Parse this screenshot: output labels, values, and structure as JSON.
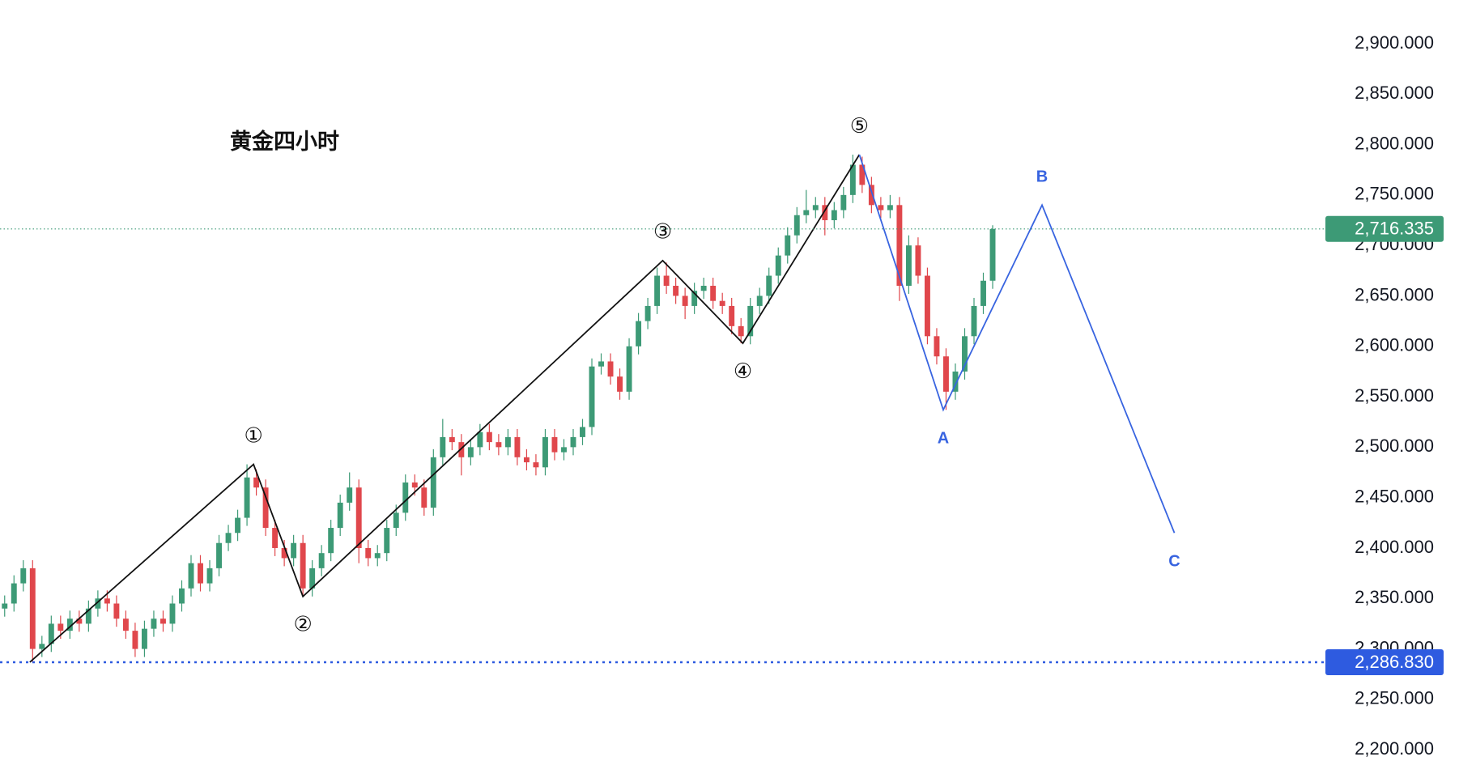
{
  "chart_data": {
    "type": "candlestick",
    "title": "黄金四小时",
    "up_color": "#3d9a76",
    "down_color": "#e0474c",
    "xlim": [
      0,
      142.2
    ],
    "ylim": [
      2188.9,
      2943.3
    ],
    "yticks": [
      {
        "value": 2200,
        "label": "2,200.000"
      },
      {
        "value": 2250,
        "label": "2,250.000"
      },
      {
        "value": 2300,
        "label": "2,300.000"
      },
      {
        "value": 2350,
        "label": "2,350.000"
      },
      {
        "value": 2400,
        "label": "2,400.000"
      },
      {
        "value": 2450,
        "label": "2,450.000"
      },
      {
        "value": 2500,
        "label": "2,500.000"
      },
      {
        "value": 2550,
        "label": "2,550.000"
      },
      {
        "value": 2600,
        "label": "2,600.000"
      },
      {
        "value": 2650,
        "label": "2,650.000"
      },
      {
        "value": 2700,
        "label": "2,700.000"
      },
      {
        "value": 2750,
        "label": "2,750.000"
      },
      {
        "value": 2800,
        "label": "2,800.000"
      },
      {
        "value": 2850,
        "label": "2,850.000"
      },
      {
        "value": 2900,
        "label": "2,900.000"
      }
    ],
    "open": [
      2340,
      2345,
      2365,
      2380,
      2300,
      2305,
      2325,
      2318,
      2330,
      2325,
      2340,
      2350,
      2345,
      2330,
      2318,
      2300,
      2320,
      2330,
      2325,
      2345,
      2360,
      2385,
      2365,
      2380,
      2405,
      2415,
      2430,
      2470,
      2460,
      2420,
      2400,
      2390,
      2405,
      2360,
      2380,
      2395,
      2420,
      2445,
      2460,
      2400,
      2390,
      2395,
      2420,
      2435,
      2465,
      2460,
      2440,
      2490,
      2510,
      2505,
      2490,
      2500,
      2515,
      2505,
      2500,
      2510,
      2490,
      2485,
      2480,
      2510,
      2495,
      2500,
      2510,
      2520,
      2580,
      2585,
      2570,
      2555,
      2600,
      2625,
      2640,
      2670,
      2660,
      2650,
      2640,
      2655,
      2660,
      2645,
      2640,
      2620,
      2610,
      2640,
      2650,
      2670,
      2690,
      2710,
      2730,
      2735,
      2740,
      2725,
      2735,
      2750,
      2780,
      2760,
      2740,
      2735,
      2740,
      2660,
      2700,
      2670,
      2610,
      2590,
      2555,
      2575,
      2610,
      2640,
      2665
    ],
    "high": [
      2353,
      2373,
      2388,
      2388,
      2313,
      2333,
      2333,
      2338,
      2338,
      2348,
      2358,
      2358,
      2353,
      2338,
      2326,
      2328,
      2338,
      2338,
      2353,
      2368,
      2393,
      2393,
      2388,
      2413,
      2423,
      2438,
      2483,
      2478,
      2468,
      2428,
      2408,
      2413,
      2413,
      2388,
      2403,
      2428,
      2453,
      2475,
      2468,
      2408,
      2403,
      2428,
      2443,
      2473,
      2473,
      2468,
      2498,
      2528,
      2518,
      2513,
      2508,
      2523,
      2523,
      2513,
      2518,
      2518,
      2498,
      2493,
      2518,
      2518,
      2508,
      2518,
      2528,
      2588,
      2593,
      2593,
      2578,
      2608,
      2633,
      2648,
      2678,
      2683,
      2668,
      2658,
      2663,
      2668,
      2668,
      2653,
      2648,
      2628,
      2648,
      2658,
      2678,
      2698,
      2718,
      2738,
      2755,
      2748,
      2748,
      2743,
      2758,
      2790,
      2788,
      2768,
      2748,
      2750,
      2748,
      2710,
      2708,
      2678,
      2618,
      2598,
      2583,
      2618,
      2648,
      2673,
      2720
    ],
    "low": [
      2332,
      2337,
      2357,
      2286.83,
      2292,
      2297,
      2310,
      2310,
      2317,
      2317,
      2332,
      2337,
      2322,
      2310,
      2292,
      2292,
      2312,
      2317,
      2317,
      2337,
      2352,
      2357,
      2357,
      2372,
      2397,
      2407,
      2422,
      2452,
      2412,
      2392,
      2382,
      2382,
      2352,
      2352,
      2372,
      2387,
      2412,
      2437,
      2385,
      2382,
      2382,
      2387,
      2412,
      2427,
      2452,
      2432,
      2432,
      2482,
      2497,
      2472,
      2482,
      2492,
      2497,
      2492,
      2492,
      2482,
      2477,
      2472,
      2472,
      2487,
      2487,
      2492,
      2502,
      2512,
      2572,
      2562,
      2547,
      2547,
      2592,
      2617,
      2632,
      2652,
      2642,
      2627,
      2632,
      2647,
      2637,
      2632,
      2612,
      2603,
      2602,
      2632,
      2642,
      2662,
      2682,
      2702,
      2722,
      2727,
      2710,
      2717,
      2727,
      2742,
      2752,
      2732,
      2727,
      2727,
      2645,
      2652,
      2662,
      2602,
      2582,
      2537,
      2547,
      2567,
      2602,
      2632,
      2657
    ],
    "close": [
      2345,
      2365,
      2380,
      2300,
      2305,
      2325,
      2318,
      2330,
      2325,
      2340,
      2350,
      2345,
      2330,
      2318,
      2300,
      2320,
      2330,
      2325,
      2345,
      2360,
      2385,
      2365,
      2380,
      2405,
      2415,
      2430,
      2470,
      2460,
      2420,
      2400,
      2390,
      2405,
      2360,
      2380,
      2395,
      2420,
      2445,
      2460,
      2400,
      2390,
      2395,
      2420,
      2435,
      2465,
      2460,
      2440,
      2490,
      2510,
      2505,
      2490,
      2500,
      2515,
      2505,
      2500,
      2510,
      2490,
      2485,
      2480,
      2510,
      2495,
      2500,
      2510,
      2520,
      2580,
      2585,
      2570,
      2555,
      2600,
      2625,
      2640,
      2670,
      2660,
      2650,
      2640,
      2655,
      2660,
      2645,
      2640,
      2620,
      2610,
      2640,
      2650,
      2670,
      2690,
      2710,
      2730,
      2735,
      2740,
      2725,
      2735,
      2750,
      2780,
      2760,
      2740,
      2735,
      2740,
      2660,
      2700,
      2670,
      2610,
      2590,
      2555,
      2575,
      2610,
      2640,
      2665,
      2716.335
    ],
    "hlines": [
      {
        "value": 2716.335,
        "label": "2,716.335",
        "color": "#3d9a76",
        "style": "dotted"
      },
      {
        "value": 2286.83,
        "label": "2,286.830",
        "color": "#2e5be0",
        "style": "dashed"
      }
    ],
    "waves": [
      {
        "color": "#111111",
        "x": [
          3.2,
          27.2,
          32.5,
          71.1,
          79.7,
          92.2
        ],
        "y": [
          2286.83,
          2483,
          2352,
          2685,
          2603,
          2790
        ],
        "labels": [
          null,
          "①",
          "②",
          "③",
          "④",
          "⑤"
        ]
      },
      {
        "color": "#3864e0",
        "x": [
          92.2,
          101.2,
          111.8,
          126.0
        ],
        "y": [
          2790,
          2537,
          2740,
          2415
        ],
        "labels": [
          null,
          "A",
          "B",
          "C"
        ]
      }
    ]
  }
}
